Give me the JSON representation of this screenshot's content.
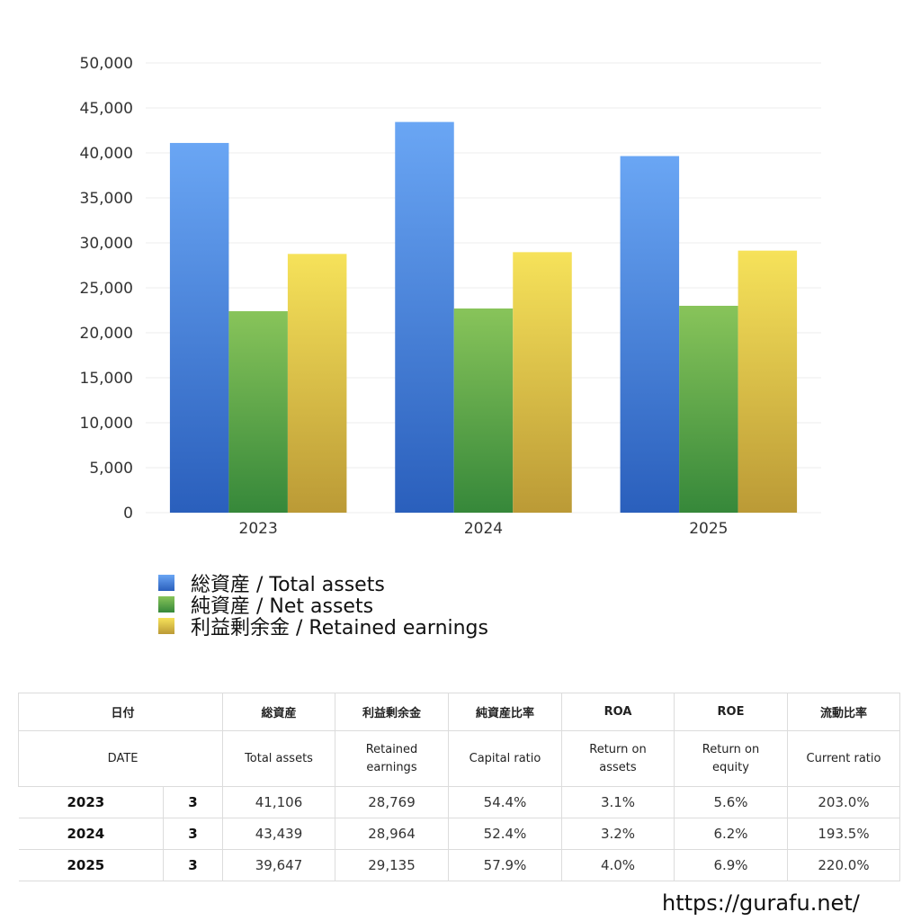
{
  "chart_data": {
    "type": "bar",
    "categories": [
      "2023",
      "2024",
      "2025"
    ],
    "series": [
      {
        "name": "総資産 / Total assets",
        "values": [
          41106,
          43439,
          39647
        ],
        "color_top": "#6aa6f4",
        "color_bottom": "#2a5fbc"
      },
      {
        "name": "純資産 / Net assets",
        "values": [
          22400,
          22700,
          23000
        ],
        "color_top": "#88c45a",
        "color_bottom": "#36883a"
      },
      {
        "name": "利益剰余金 / Retained earnings",
        "values": [
          28769,
          28964,
          29135
        ],
        "color_top": "#f6e25a",
        "color_bottom": "#bb9a36"
      }
    ],
    "yticks": [
      "50,000",
      "45,000",
      "40,000",
      "35,000",
      "30,000",
      "25,000",
      "20,000",
      "15,000",
      "10,000",
      "5,000",
      "0"
    ],
    "ylim": [
      0,
      50000
    ],
    "grid": true,
    "legend_position": "bottom-left"
  },
  "table": {
    "header_jp": {
      "date": "日付",
      "total_assets": "総資産",
      "retained": "利益剰余金",
      "capital_ratio": "純資産比率",
      "roa": "ROA",
      "roe": "ROE",
      "current_ratio": "流動比率"
    },
    "header_en": {
      "date": "DATE",
      "total_assets": "Total assets",
      "retained_1": "Retained",
      "retained_2": "earnings",
      "capital_ratio": "Capital ratio",
      "roa_1": "Return on",
      "roa_2": "assets",
      "roe_1": "Return on",
      "roe_2": "equity",
      "current_ratio": "Current ratio"
    },
    "rows": [
      {
        "year": "2023",
        "month": "3",
        "total_assets": "41,106",
        "retained": "28,769",
        "capital_ratio": "54.4%",
        "roa": "3.1%",
        "roe": "5.6%",
        "current_ratio": "203.0%"
      },
      {
        "year": "2024",
        "month": "3",
        "total_assets": "43,439",
        "retained": "28,964",
        "capital_ratio": "52.4%",
        "roa": "3.2%",
        "roe": "6.2%",
        "current_ratio": "193.5%"
      },
      {
        "year": "2025",
        "month": "3",
        "total_assets": "39,647",
        "retained": "29,135",
        "capital_ratio": "57.9%",
        "roa": "4.0%",
        "roe": "6.9%",
        "current_ratio": "220.0%"
      }
    ]
  },
  "footer": {
    "url": "https://gurafu.net/"
  }
}
